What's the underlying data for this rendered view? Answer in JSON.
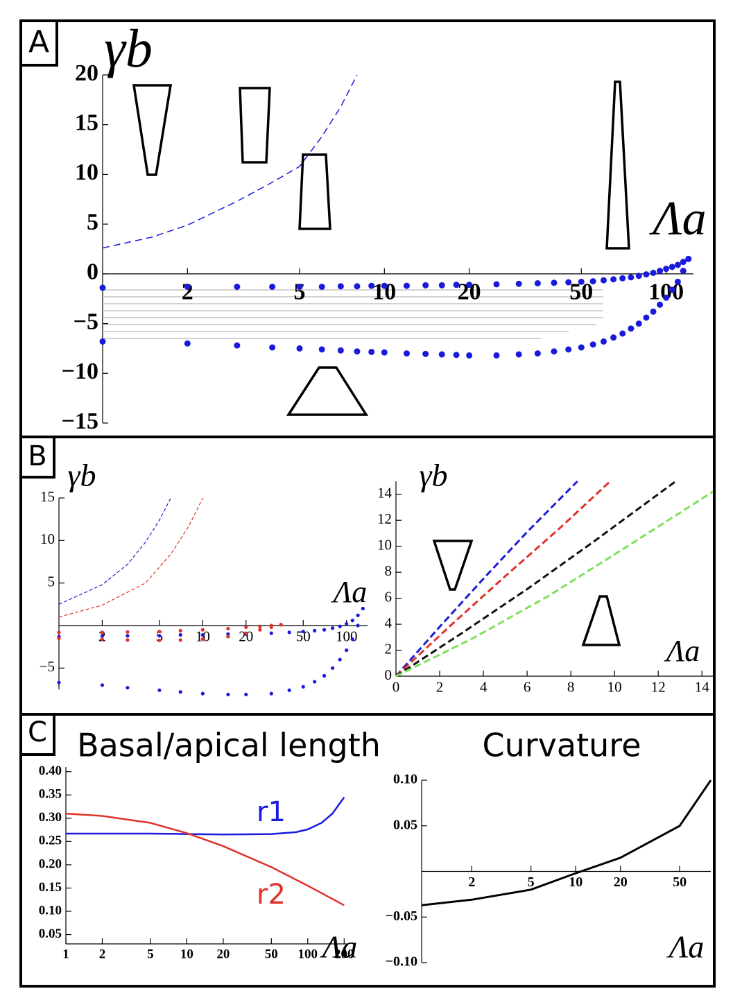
{
  "chart_data": [
    {
      "type": "line",
      "panel": "A",
      "ylabel": "γb",
      "xlabel": "Λa",
      "xscale": "log",
      "xlim": [
        1,
        125
      ],
      "ylim": [
        -15,
        20
      ],
      "xticks": [
        2,
        5,
        10,
        20,
        50,
        100
      ],
      "yticks": [
        20,
        15,
        10,
        5,
        0,
        {
          "value": -5,
          "label": "−5"
        },
        {
          "value": -10,
          "label": "−10"
        },
        {
          "value": -15,
          "label": "−15"
        }
      ],
      "series": [
        {
          "style": "dashed",
          "color": "#1a1adc",
          "x": [
            1,
            1.5,
            2,
            3,
            4,
            5,
            6,
            7,
            8
          ],
          "values": [
            2.6,
            3.7,
            4.9,
            7.3,
            9.2,
            10.8,
            13.8,
            16.8,
            20
          ]
        },
        {
          "style": "dotted",
          "color": "#1a1adc",
          "x": [
            1,
            2,
            3,
            4,
            5,
            6,
            7,
            8,
            9,
            10,
            12,
            14,
            16,
            18,
            20,
            25,
            30,
            35,
            40,
            45,
            50,
            55,
            60,
            65,
            70,
            75,
            80,
            85,
            90,
            95,
            100,
            105,
            110,
            115,
            120
          ],
          "values": [
            -1.4,
            -1.3,
            -1.3,
            -1.3,
            -1.3,
            -1.3,
            -1.25,
            -1.25,
            -1.2,
            -1.2,
            -1.2,
            -1.15,
            -1.15,
            -1.1,
            -1.1,
            -1.05,
            -1.0,
            -0.95,
            -0.9,
            -0.85,
            -0.8,
            -0.75,
            -0.65,
            -0.55,
            -0.45,
            -0.35,
            -0.2,
            -0.05,
            0.1,
            0.3,
            0.5,
            0.7,
            0.9,
            1.2,
            1.5
          ]
        },
        {
          "style": "dotted",
          "color": "#1a1adc",
          "x": [
            1,
            2,
            3,
            4,
            5,
            6,
            7,
            8,
            9,
            10,
            12,
            14,
            16,
            18,
            20,
            25,
            30,
            35,
            40,
            45,
            50,
            55,
            60,
            65,
            70,
            75,
            80,
            85,
            90,
            95,
            100,
            105,
            110,
            115,
            120
          ],
          "values": [
            -6.8,
            -7,
            -7.2,
            -7.4,
            -7.5,
            -7.6,
            -7.7,
            -7.8,
            -7.85,
            -7.9,
            -8,
            -8.05,
            -8.1,
            -8.15,
            -8.2,
            -8.2,
            -8.1,
            -8.0,
            -7.8,
            -7.6,
            -7.4,
            -7.1,
            -6.8,
            -6.4,
            -6.0,
            -5.5,
            -5.0,
            -4.4,
            -3.8,
            -3.1,
            -2.4,
            -1.6,
            -0.8,
            0.3,
            1.5
          ]
        }
      ]
    },
    {
      "type": "line",
      "panel": "B",
      "ylabel": "γb",
      "xlabel": "Λa",
      "xscale": "log",
      "xlim": [
        1,
        140
      ],
      "ylim": [
        -7.5,
        15
      ],
      "xticks": [
        2,
        5,
        10,
        20,
        50,
        100
      ],
      "yticks": [
        15,
        10,
        5,
        {
          "value": -5,
          "label": "−5"
        }
      ],
      "series": [
        {
          "style": "dashed",
          "color": "#1a1adc",
          "x": [
            1,
            2,
            3,
            4,
            5,
            6
          ],
          "values": [
            2.5,
            4.8,
            7.2,
            9.8,
            12.4,
            15
          ]
        },
        {
          "style": "dashed",
          "color": "#e0322a",
          "x": [
            1,
            2,
            4,
            6,
            8,
            10
          ],
          "values": [
            1,
            2.4,
            5,
            8.4,
            11.7,
            15
          ]
        },
        {
          "style": "dotted",
          "color": "#1a1adc",
          "x": [
            1,
            2,
            3,
            5,
            7,
            10,
            15,
            20,
            30,
            40,
            50,
            60,
            70,
            80,
            90,
            100,
            110,
            120,
            130
          ],
          "values": [
            -1.3,
            -1.2,
            -1.2,
            -1.2,
            -1.1,
            -1.1,
            -1,
            -1,
            -0.9,
            -0.8,
            -0.7,
            -0.6,
            -0.5,
            -0.3,
            -0.1,
            0.2,
            0.6,
            1.2,
            2
          ]
        },
        {
          "style": "dotted",
          "color": "#1a1adc",
          "x": [
            1,
            2,
            3,
            5,
            7,
            10,
            15,
            20,
            30,
            40,
            50,
            60,
            70,
            80,
            90,
            100,
            110,
            120,
            130
          ],
          "values": [
            -6.7,
            -7,
            -7.3,
            -7.6,
            -7.8,
            -8,
            -8.1,
            -8.1,
            -8,
            -7.6,
            -7.2,
            -6.6,
            -5.9,
            -5.0,
            -4,
            -2.9,
            -1.6,
            0,
            2
          ]
        },
        {
          "style": "dotted",
          "color": "#e0322a",
          "x": [
            1,
            2,
            3,
            5,
            7,
            10,
            15,
            20,
            25,
            30,
            35
          ],
          "values": [
            -0.8,
            -0.8,
            -0.75,
            -0.7,
            -0.6,
            -0.5,
            -0.35,
            -0.2,
            -0.1,
            0,
            0.1
          ]
        },
        {
          "style": "dotted",
          "color": "#e0322a",
          "x": [
            1,
            2,
            3,
            5,
            7,
            10,
            15,
            20,
            25,
            30,
            35
          ],
          "values": [
            -1.5,
            -1.6,
            -1.7,
            -1.75,
            -1.7,
            -1.6,
            -1.3,
            -0.9,
            -0.5,
            -0.2,
            0.1
          ]
        }
      ]
    },
    {
      "type": "line",
      "ylabel": "γb",
      "xlabel": "Λa",
      "xscale": "linear",
      "xlim": [
        0,
        14.5
      ],
      "ylim": [
        0,
        15
      ],
      "xticks": [
        0,
        2,
        4,
        6,
        8,
        10,
        12,
        14
      ],
      "yticks": [
        0,
        2,
        4,
        6,
        8,
        10,
        12,
        14
      ],
      "series": [
        {
          "style": "dashed",
          "color": "#1a1adc",
          "x": [
            0,
            2,
            4,
            6,
            8.3
          ],
          "values": [
            0,
            3.8,
            7.5,
            11.1,
            15
          ]
        },
        {
          "style": "dashed",
          "color": "#e0322a",
          "x": [
            0,
            2.5,
            5,
            7.5,
            9.8
          ],
          "values": [
            0,
            3.9,
            7.7,
            11.4,
            15
          ]
        },
        {
          "style": "dashed",
          "color": "#111111",
          "x": [
            0,
            3,
            6,
            9,
            12.8
          ],
          "values": [
            0,
            3.3,
            6.7,
            10.3,
            15
          ]
        },
        {
          "style": "dashed",
          "color": "#7ee05a",
          "x": [
            0,
            3.5,
            7,
            10.5,
            14.5
          ],
          "values": [
            0,
            2.9,
            6.2,
            9.9,
            14.2
          ]
        }
      ]
    },
    {
      "type": "line",
      "panel": "C",
      "title": "Basal/apical length",
      "xlabel": "Λa",
      "xscale": "log",
      "xlim": [
        1,
        210
      ],
      "ylim": [
        0.03,
        0.41
      ],
      "xticks": [
        1,
        2,
        5,
        10,
        20,
        50,
        100,
        200
      ],
      "yticks": [
        {
          "value": 0.4,
          "label": "0.40"
        },
        0.35,
        {
          "value": 0.3,
          "label": "0.30"
        },
        0.25,
        {
          "value": 0.2,
          "label": "0.20"
        },
        0.15,
        {
          "value": 0.1,
          "label": "0.10"
        },
        0.05
      ],
      "series": [
        {
          "name": "r1",
          "style": "solid",
          "color": "#1a1adc",
          "x": [
            1,
            2,
            5,
            10,
            20,
            50,
            80,
            100,
            130,
            160,
            200
          ],
          "values": [
            0.267,
            0.267,
            0.267,
            0.266,
            0.265,
            0.266,
            0.27,
            0.276,
            0.29,
            0.31,
            0.345
          ]
        },
        {
          "name": "r2",
          "style": "solid",
          "color": "#e0322a",
          "x": [
            1,
            2,
            5,
            10,
            20,
            50,
            100,
            200
          ],
          "values": [
            0.31,
            0.305,
            0.29,
            0.268,
            0.24,
            0.195,
            0.155,
            0.113
          ]
        }
      ]
    },
    {
      "type": "line",
      "title": "Curvature",
      "xlabel": "Λa",
      "xscale": "log",
      "xlim": [
        0.92,
        81
      ],
      "ylim": [
        -0.1,
        0.1
      ],
      "xticks": [
        2,
        5,
        10,
        20,
        50
      ],
      "yticks": [
        {
          "value": 0.1,
          "label": "0.10"
        },
        0.05,
        {
          "value": -0.05,
          "label": "−0.05"
        },
        {
          "value": -0.1,
          "label": "−0.10"
        }
      ],
      "series": [
        {
          "style": "solid",
          "color": "#000000",
          "x": [
            0.92,
            2,
            5,
            10,
            20,
            50,
            81
          ],
          "values": [
            -0.037,
            -0.031,
            -0.02,
            -0.002,
            0.015,
            0.05,
            0.1
          ]
        }
      ]
    }
  ]
}
